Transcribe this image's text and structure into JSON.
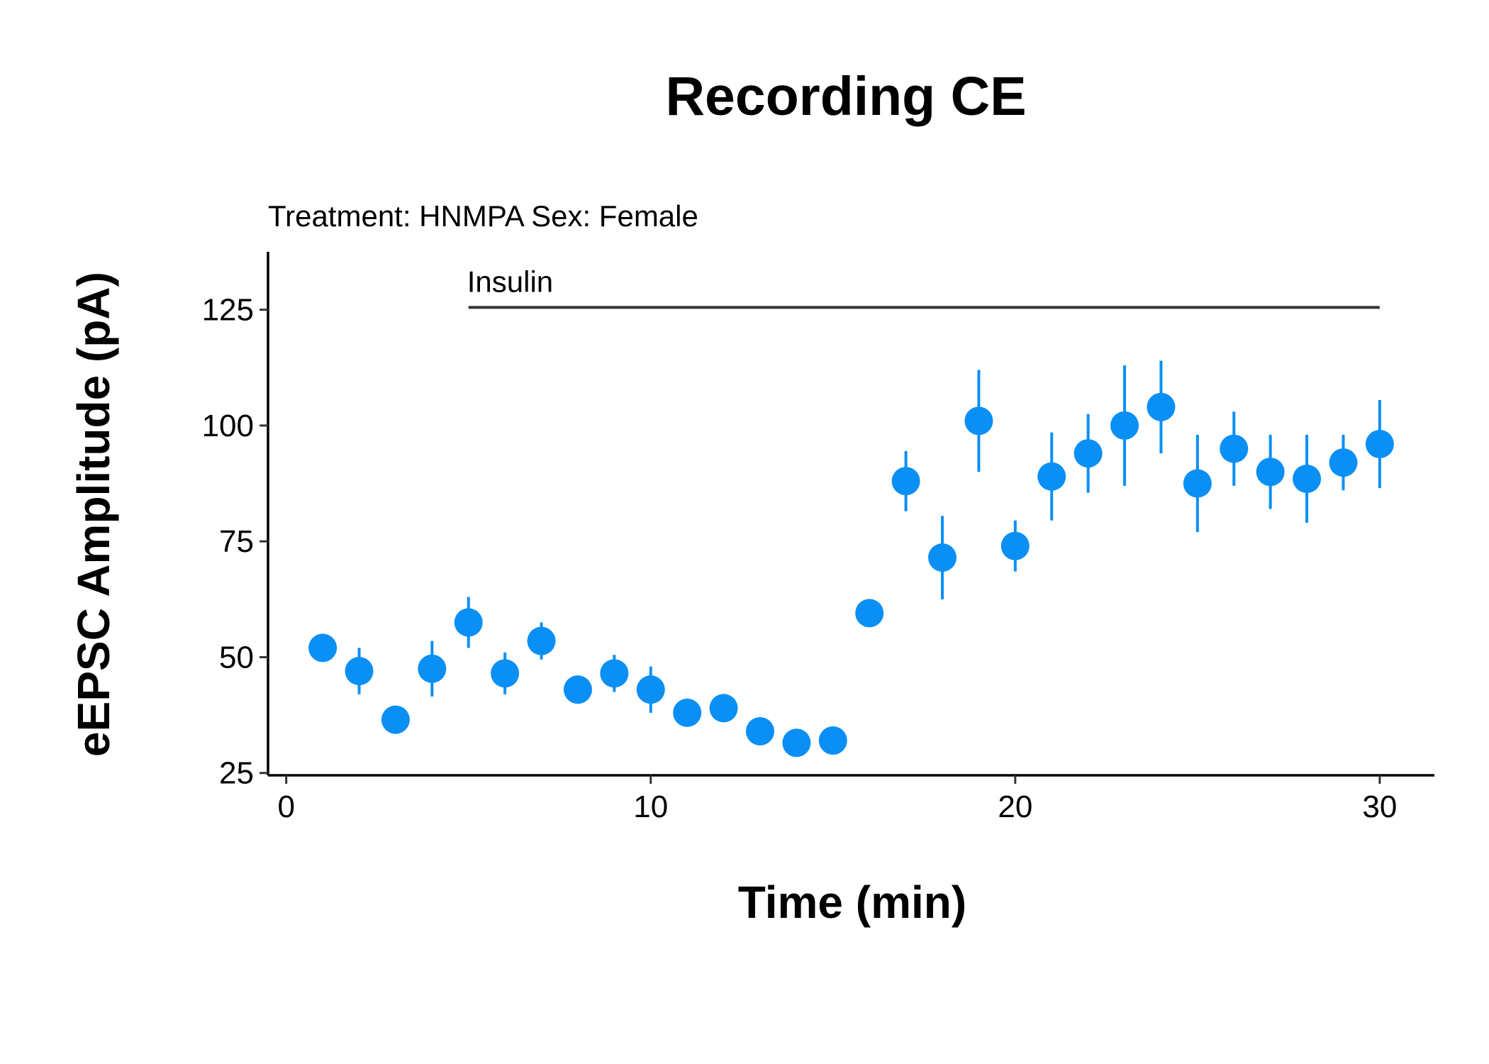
{
  "chart_data": {
    "type": "scatter",
    "title": "Recording CE",
    "subtitle": "Treatment: HNMPA  Sex: Female",
    "xlabel": "Time (min)",
    "ylabel": "eEPSC Amplitude (pA)",
    "xlim": [
      -0.5,
      31.5
    ],
    "ylim": [
      24.5,
      137.5
    ],
    "xticks": [
      0,
      10,
      20,
      30
    ],
    "yticks": [
      25,
      50,
      75,
      100,
      125
    ],
    "grid": false,
    "legend": "none",
    "point_color": "#0a8ff5",
    "annotation": {
      "label": "Insulin",
      "x_start": 5,
      "x_end": 30,
      "y": 125.5
    },
    "points": [
      {
        "x": 1,
        "y": 52,
        "err": 0
      },
      {
        "x": 2,
        "y": 47,
        "err": 5
      },
      {
        "x": 3,
        "y": 36.5,
        "err": 0
      },
      {
        "x": 4,
        "y": 47.5,
        "err": 6
      },
      {
        "x": 5,
        "y": 57.5,
        "err": 5.5
      },
      {
        "x": 6,
        "y": 46.5,
        "err": 4.5
      },
      {
        "x": 7,
        "y": 53.5,
        "err": 4
      },
      {
        "x": 8,
        "y": 43,
        "err": 2
      },
      {
        "x": 9,
        "y": 46.5,
        "err": 4
      },
      {
        "x": 10,
        "y": 43,
        "err": 5
      },
      {
        "x": 11,
        "y": 38,
        "err": 0
      },
      {
        "x": 12,
        "y": 39,
        "err": 0
      },
      {
        "x": 13,
        "y": 34,
        "err": 0
      },
      {
        "x": 14,
        "y": 31.5,
        "err": 0
      },
      {
        "x": 15,
        "y": 32,
        "err": 0
      },
      {
        "x": 16,
        "y": 59.5,
        "err": 0
      },
      {
        "x": 17,
        "y": 88,
        "err": 6.5
      },
      {
        "x": 18,
        "y": 71.5,
        "err": 9
      },
      {
        "x": 19,
        "y": 101,
        "err": 11
      },
      {
        "x": 20,
        "y": 74,
        "err": 5.5
      },
      {
        "x": 21,
        "y": 89,
        "err": 9.5
      },
      {
        "x": 22,
        "y": 94,
        "err": 8.5
      },
      {
        "x": 23,
        "y": 100,
        "err": 13
      },
      {
        "x": 24,
        "y": 104,
        "err": 10
      },
      {
        "x": 25,
        "y": 87.5,
        "err": 10.5
      },
      {
        "x": 26,
        "y": 95,
        "err": 8
      },
      {
        "x": 27,
        "y": 90,
        "err": 8
      },
      {
        "x": 28,
        "y": 88.5,
        "err": 9.5
      },
      {
        "x": 29,
        "y": 92,
        "err": 6
      },
      {
        "x": 30,
        "y": 96,
        "err": 9.5
      }
    ]
  }
}
